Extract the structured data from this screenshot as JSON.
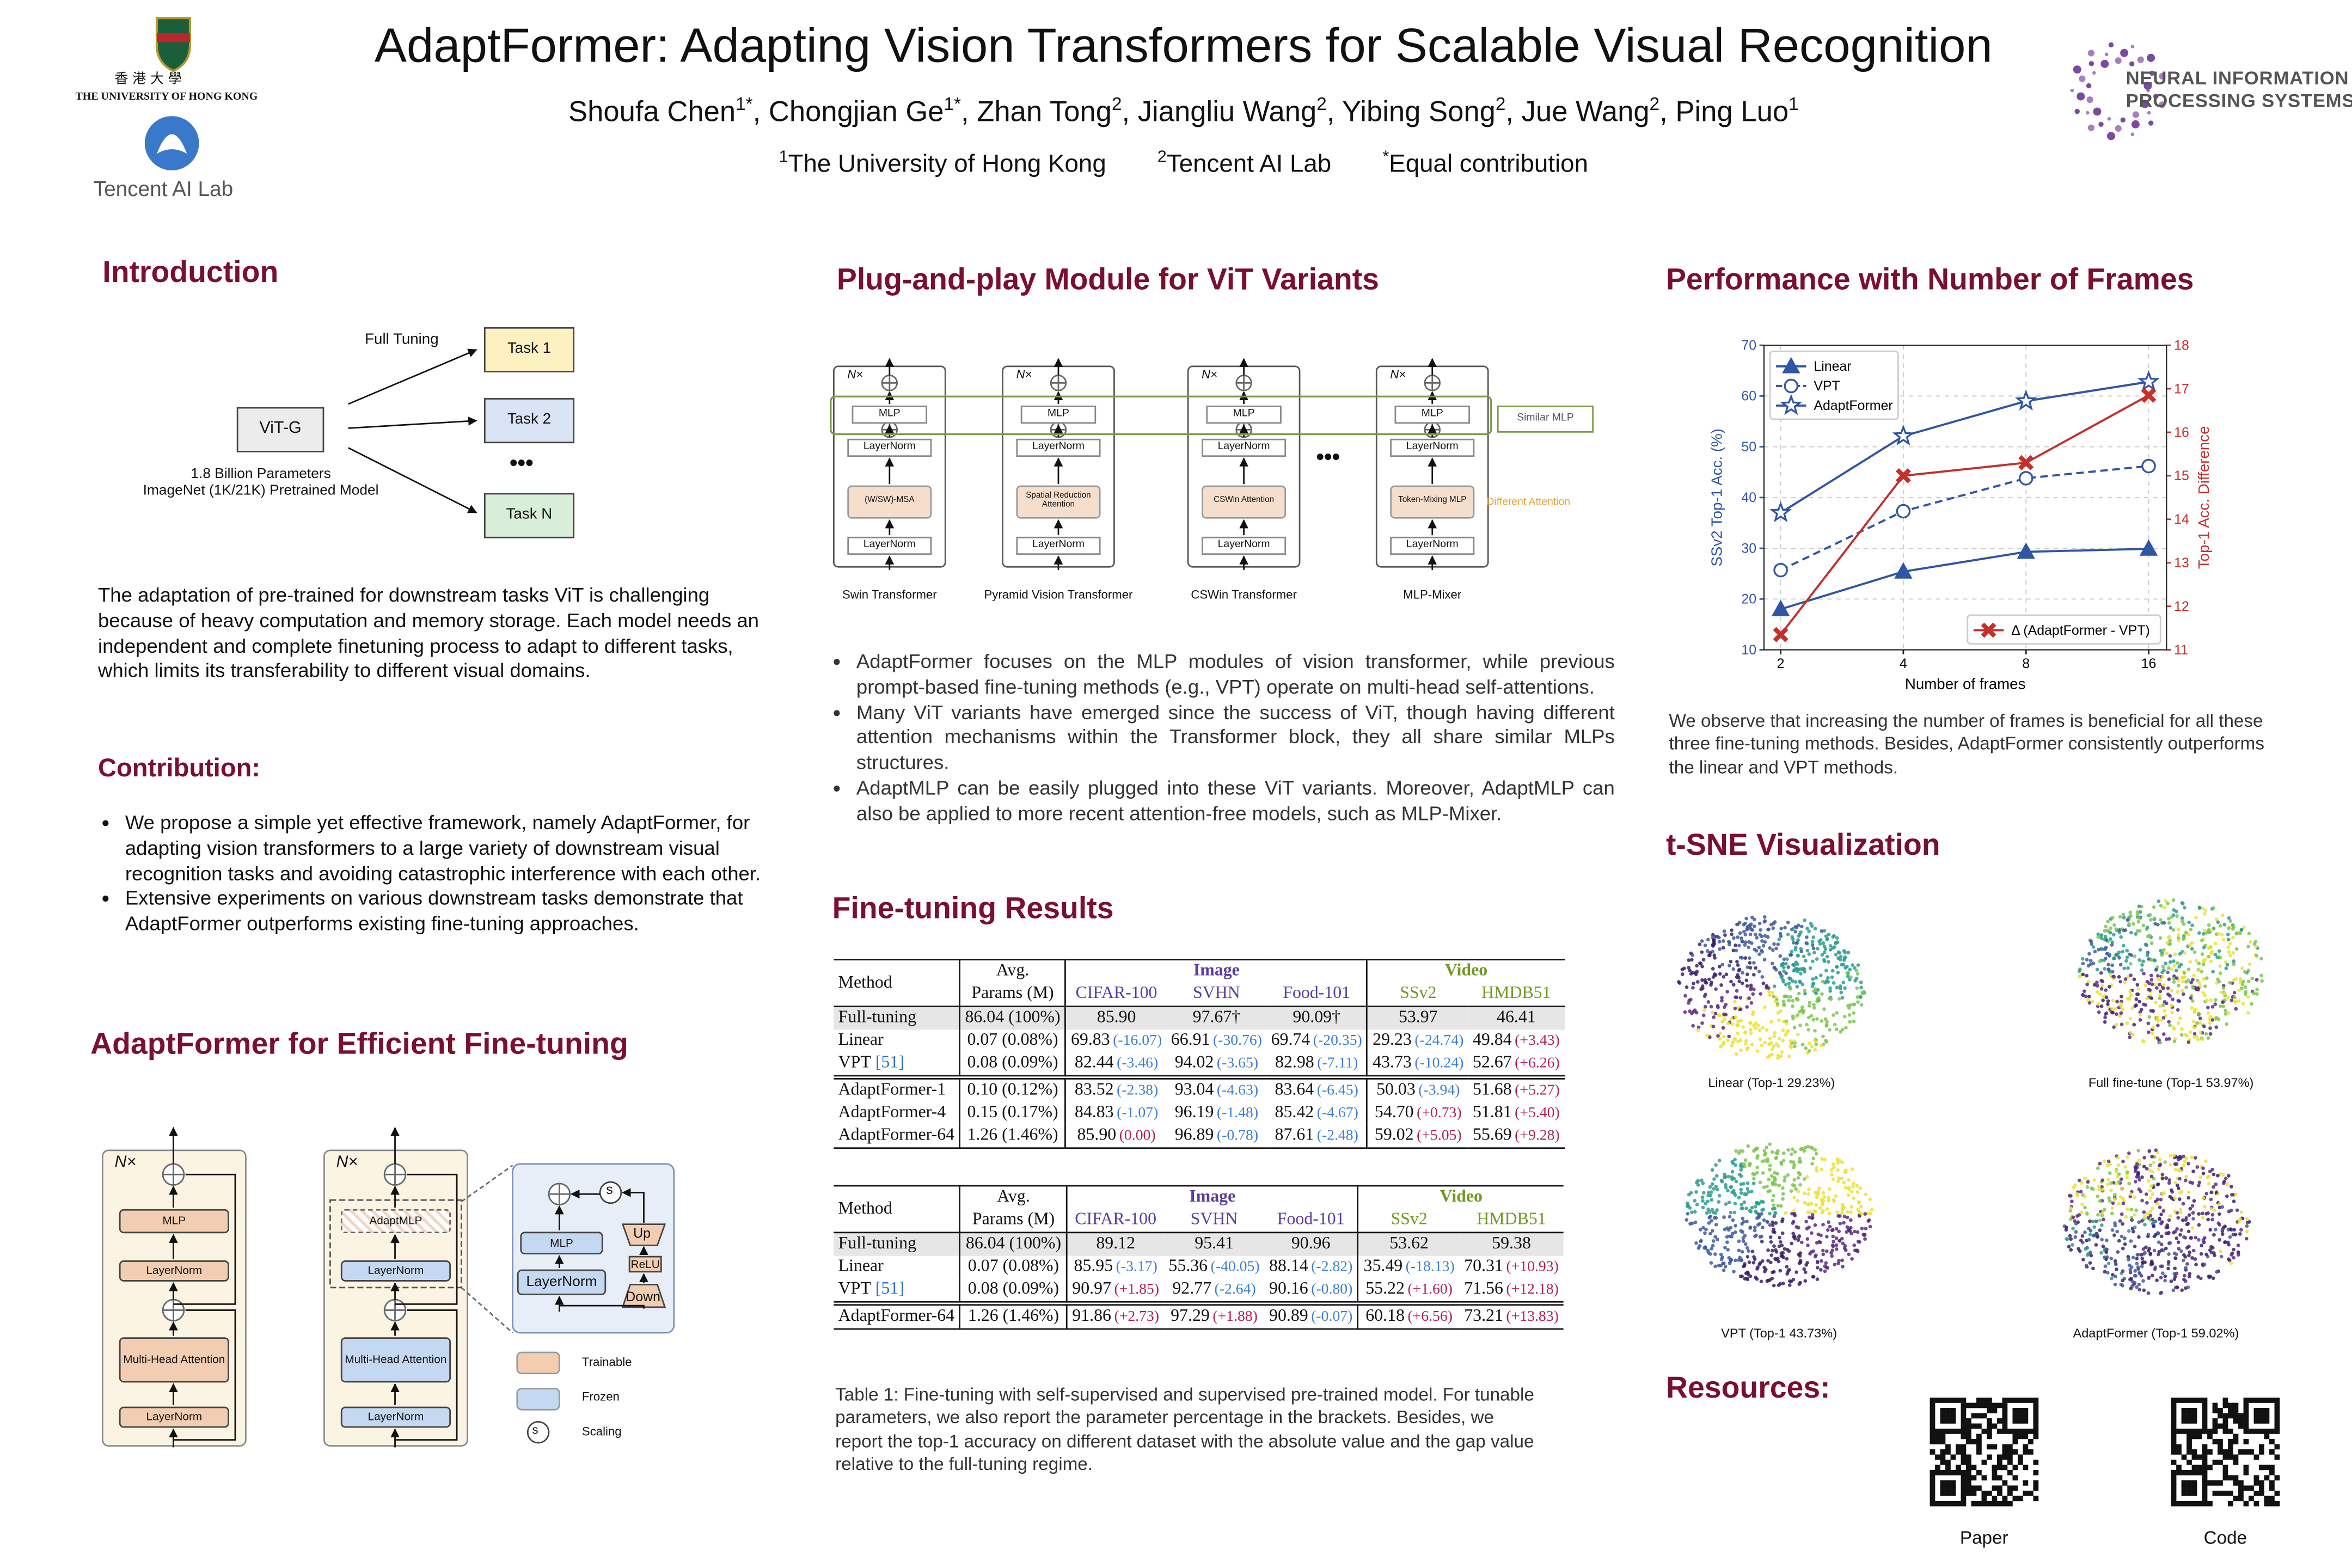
{
  "header": {
    "title": "AdaptFormer: Adapting Vision Transformers for Scalable Visual Recognition",
    "authors": [
      {
        "name": "Shoufa Chen",
        "sup": "1*"
      },
      {
        "name": "Chongjian Ge",
        "sup": "1*"
      },
      {
        "name": "Zhan Tong",
        "sup": "2"
      },
      {
        "name": "Jiangliu Wang",
        "sup": "2"
      },
      {
        "name": "Yibing Song",
        "sup": "2"
      },
      {
        "name": "Jue Wang",
        "sup": "2"
      },
      {
        "name": "Ping Luo",
        "sup": "1"
      }
    ],
    "separator": ", ",
    "affiliations": [
      {
        "sup": "1",
        "name": "The University of Hong Kong"
      },
      {
        "sup": "2",
        "name": "Tencent AI Lab"
      },
      {
        "sup": "*",
        "name": "Equal contribution"
      }
    ],
    "logos": {
      "hku_chinese": "香 港 大 學",
      "hku": "THE UNIVERSITY OF HONG KONG",
      "tencent": "Tencent AI Lab",
      "neurips": [
        "NEURAL INFORMATION",
        "PROCESSING SYSTEMS"
      ]
    }
  },
  "introduction": {
    "title": "Introduction",
    "diagram": {
      "full_tuning": "Full Tuning",
      "model": "ViT-G",
      "tasks": [
        "Task 1",
        "Task 2",
        "•••",
        "Task N"
      ],
      "caption": [
        "1.8 Billion Parameters",
        "ImageNet (1K/21K) Pretrained Model"
      ]
    },
    "text": "The adaptation of pre-trained for downstream tasks ViT is challenging because of heavy computation and memory storage. Each model needs an independent and complete finetuning process to adapt to different tasks, which limits its transferability to different visual domains."
  },
  "contribution": {
    "title": "Contribution:",
    "bullets": [
      "We propose a simple yet effective framework, namely AdaptFormer, for adapting vision transformers to a large variety of downstream visual recognition tasks and avoiding catastrophic interference with each other.",
      "Extensive experiments on various downstream tasks demonstrate that AdaptFormer outperforms existing fine-tuning approaches."
    ]
  },
  "method": {
    "title": "AdaptFormer for Efficient Fine-tuning",
    "diagram": {
      "n": "N×",
      "mlp": "MLP",
      "layernorm": "LayerNorm",
      "attention": "Multi-Head Attention",
      "adaptmlp": "AdaptMLP",
      "scale": "s",
      "up": "Up",
      "relu": "ReLU",
      "down": "Down",
      "legend": [
        "Trainable",
        "Frozen",
        "Scaling"
      ]
    }
  },
  "plug": {
    "title": "Plug-and-play Module for ViT Variants",
    "diagram": {
      "n": "N×",
      "mlp": "MLP",
      "layernorm": "LayerNorm",
      "variants": [
        {
          "attention": "(W/SW)-MSA",
          "caption": "Swin Transformer"
        },
        {
          "attention": "Spatial Reduction Attention",
          "caption": "Pyramid Vision Transformer"
        },
        {
          "attention": "CSWin Attention",
          "caption": "CSWin Transformer"
        },
        {
          "attention": "Token-Mixing MLP",
          "caption": "MLP-Mixer"
        }
      ],
      "dots": "•••",
      "similar": "Similar MLP",
      "different": "Different Attention"
    },
    "bullets": [
      "AdaptFormer focuses on the MLP modules of vision transformer, while previous prompt-based fine-tuning methods (e.g., VPT) operate on multi-head self-attentions.",
      "Many ViT variants have emerged since the success of ViT, though having different attention mechanisms within the Transformer block, they all share similar MLPs structures.",
      "AdaptMLP can be easily plugged into these ViT variants. Moreover, AdaptMLP can also be applied to more recent attention-free models, such as MLP-Mixer."
    ]
  },
  "results": {
    "title": "Fine-tuning Results",
    "header": {
      "method": "Method",
      "params": [
        "Avg.",
        "Params (M)"
      ],
      "groups": [
        {
          "name": "Image",
          "color": "#5a3da0",
          "datasets": [
            "CIFAR-100",
            "SVHN",
            "Food-101"
          ]
        },
        {
          "name": "Video",
          "color": "#6f9a22",
          "datasets": [
            "SSv2",
            "HMDB51"
          ]
        }
      ]
    },
    "tables": [
      {
        "row_groups": [
          [
            {
              "method": "Full-tuning",
              "shaded": true,
              "params": "86.04 (100%)",
              "values": [
                "85.90",
                "97.67†",
                "90.09†",
                "53.97",
                "46.41"
              ]
            },
            {
              "method": "Linear",
              "params": "0.07 (0.08%)",
              "values": [
                "69.83",
                "66.91",
                "69.74",
                "29.23",
                "49.84"
              ],
              "deltas": [
                "(-16.07)",
                "(-30.76)",
                "(-20.35)",
                "(-24.74)",
                "(+3.43)"
              ]
            },
            {
              "method": "VPT",
              "ref": "[51]",
              "params": "0.08 (0.09%)",
              "values": [
                "82.44",
                "94.02",
                "82.98",
                "43.73",
                "52.67"
              ],
              "deltas": [
                "(-3.46)",
                "(-3.65)",
                "(-7.11)",
                "(-10.24)",
                "(+6.26)"
              ]
            }
          ],
          [
            {
              "method": "AdaptFormer-1",
              "params": "0.10 (0.12%)",
              "values": [
                "83.52",
                "93.04",
                "83.64",
                "50.03",
                "51.68"
              ],
              "deltas": [
                "(-2.38)",
                "(-4.63)",
                "(-6.45)",
                "(-3.94)",
                "(+5.27)"
              ]
            },
            {
              "method": "AdaptFormer-4",
              "params": "0.15 (0.17%)",
              "values": [
                "84.83",
                "96.19",
                "85.42",
                "54.70",
                "51.81"
              ],
              "deltas": [
                "(-1.07)",
                "(-1.48)",
                "(-4.67)",
                "(+0.73)",
                "(+5.40)"
              ]
            },
            {
              "method": "AdaptFormer-64",
              "params": "1.26 (1.46%)",
              "values": [
                "85.90",
                "96.89",
                "87.61",
                "59.02",
                "55.69"
              ],
              "deltas": [
                "(0.00)",
                "(-0.78)",
                "(-2.48)",
                "(+5.05)",
                "(+9.28)"
              ]
            }
          ]
        ]
      },
      {
        "row_groups": [
          [
            {
              "method": "Full-tuning",
              "shaded": true,
              "params": "86.04 (100%)",
              "values": [
                "89.12",
                "95.41",
                "90.96",
                "53.62",
                "59.38"
              ]
            },
            {
              "method": "Linear",
              "params": "0.07 (0.08%)",
              "values": [
                "85.95",
                "55.36",
                "88.14",
                "35.49",
                "70.31"
              ],
              "deltas": [
                "(-3.17)",
                "(-40.05)",
                "(-2.82)",
                "(-18.13)",
                "(+10.93)"
              ]
            },
            {
              "method": "VPT",
              "ref": "[51]",
              "params": "0.08 (0.09%)",
              "values": [
                "90.97",
                "92.77",
                "90.16",
                "55.22",
                "71.56"
              ],
              "deltas": [
                "(+1.85)",
                "(-2.64)",
                "(-0.80)",
                "(+1.60)",
                "(+12.18)"
              ]
            }
          ],
          [
            {
              "method": "AdaptFormer-64",
              "params": "1.26 (1.46%)",
              "values": [
                "91.86",
                "97.29",
                "90.89",
                "60.18",
                "73.21"
              ],
              "deltas": [
                "(+2.73)",
                "(+1.88)",
                "(-0.07)",
                "(+6.56)",
                "(+13.83)"
              ]
            }
          ]
        ]
      }
    ],
    "caption": "Table 1: Fine-tuning with self-supervised and supervised pre-trained model. For tunable parameters, we also report the parameter percentage in the brackets. Besides, we report the top-1 accuracy on different dataset with the absolute value and the gap value relative to the full-tuning regime."
  },
  "performance": {
    "title": "Performance with Number of Frames",
    "text": "We observe that increasing the number of frames is beneficial for all these three fine-tuning methods. Besides, AdaptFormer consistently outperforms the linear and VPT methods."
  },
  "chart_data": {
    "type": "line",
    "x": [
      2,
      4,
      8,
      16
    ],
    "xscale": "log",
    "xlim": [
      1.82,
      17.7
    ],
    "xticks": [
      2,
      4,
      8,
      16
    ],
    "ylim": [
      10,
      70
    ],
    "yticks": [
      10,
      20,
      30,
      40,
      50,
      60,
      70
    ],
    "y2lim": [
      11,
      18
    ],
    "y2ticks": [
      11,
      12,
      13,
      14,
      15,
      16,
      17,
      18
    ],
    "xlabel": "Number of frames",
    "ylabel": "SSv2 Top-1 Acc. (%)",
    "y2label": "Top-1 Acc. Difference",
    "y_color": "#2f55a4",
    "y2_color": "#c4302b",
    "grid": true,
    "legend": "upper left",
    "legend2": "lower right",
    "series": [
      {
        "name": "Linear",
        "color": "#2f55a4",
        "marker": "^",
        "linestyle": "solid",
        "values": [
          18.0,
          25.4,
          29.3,
          29.9
        ]
      },
      {
        "name": "VPT",
        "color": "#2f55a4",
        "marker": "o",
        "linestyle": "dashed",
        "values": [
          25.7,
          37.3,
          43.8,
          46.2
        ]
      },
      {
        "name": "AdaptFormer",
        "color": "#2f55a4",
        "marker": "*",
        "linestyle": "solid",
        "values": [
          37.0,
          52.1,
          59.0,
          62.8
        ]
      },
      {
        "name": "Δ (AdaptFormer - VPT)",
        "color": "#c4302b",
        "marker": "X",
        "linestyle": "solid",
        "axis": "y2",
        "values": [
          11.35,
          15.0,
          15.3,
          16.85
        ]
      }
    ]
  },
  "tsne": {
    "title": "t-SNE Visualization",
    "captions": [
      "Linear (Top-1 29.23%)",
      "Full fine-tune (Top-1 53.97%)",
      "VPT (Top-1 43.73%)",
      "AdaptFormer (Top-1 59.02%)"
    ]
  },
  "resources": {
    "title": "Resources:",
    "links": [
      "Paper",
      "Code"
    ]
  }
}
